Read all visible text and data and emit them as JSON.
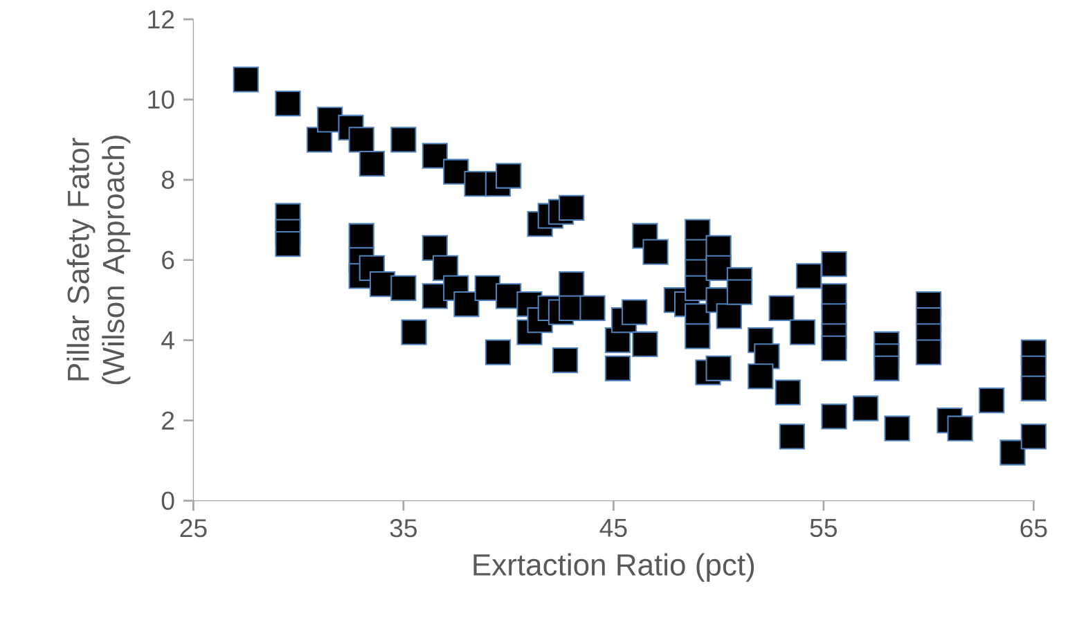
{
  "chart_data": {
    "type": "scatter",
    "xlabel": "Exrtaction Ratio (pct)",
    "ylabel": "Pillar Safety Fator (Wilson Approach)",
    "xlim": [
      25,
      65
    ],
    "xticks": [
      25,
      35,
      45,
      55,
      65
    ],
    "ylim": [
      0,
      12
    ],
    "yticks": [
      0,
      2,
      4,
      6,
      8,
      10,
      12
    ],
    "grid": false,
    "marker": "square",
    "series": [
      {
        "color": "#000000",
        "x": [
          27.5,
          29.5,
          31,
          31.5,
          32.5,
          33,
          33.5,
          35,
          36.5,
          37.5,
          38.5,
          39.5,
          40,
          41.5,
          42,
          42.5,
          43,
          29.5,
          29.5,
          29.5,
          33,
          33,
          33,
          33.5,
          34,
          35,
          35.5,
          36.5,
          36.5,
          37,
          37.5,
          38,
          39,
          40,
          39.5,
          41,
          41,
          41.5,
          42,
          42.5,
          43,
          42.7,
          43,
          44,
          45.2,
          45.2,
          45.5,
          46,
          46.5,
          46.5,
          47,
          48,
          48.5,
          49,
          49,
          49,
          49,
          49,
          49,
          49.5,
          50,
          50,
          50,
          50,
          50.5,
          51,
          51,
          52,
          52.3,
          52,
          53,
          53.3,
          53.5,
          54.3,
          54,
          55.5,
          55.5,
          55.5,
          55.5,
          55.5,
          55.5,
          57,
          58,
          58,
          58,
          58.5,
          60,
          60,
          60,
          60,
          61,
          61.5,
          63,
          64,
          65,
          65,
          65,
          65
        ],
        "values": [
          10.5,
          9.9,
          9.0,
          9.5,
          9.3,
          9.0,
          8.4,
          9.0,
          8.6,
          8.2,
          7.9,
          7.9,
          8.1,
          6.9,
          7.1,
          7.2,
          7.3,
          7.1,
          6.7,
          6.4,
          6.6,
          6.0,
          5.6,
          5.8,
          5.4,
          5.3,
          4.2,
          6.3,
          5.1,
          5.8,
          5.3,
          4.9,
          5.3,
          5.1,
          3.7,
          4.2,
          4.9,
          4.5,
          4.8,
          4.7,
          5.4,
          3.5,
          4.8,
          4.8,
          3.3,
          4.0,
          4.5,
          4.7,
          3.9,
          6.6,
          6.2,
          5.0,
          4.9,
          6.7,
          6.2,
          5.7,
          5.3,
          4.6,
          4.1,
          3.2,
          3.3,
          6.3,
          5.8,
          5.0,
          4.6,
          5.5,
          5.2,
          4.0,
          3.6,
          3.1,
          4.8,
          2.7,
          1.6,
          5.6,
          4.2,
          5.9,
          5.1,
          4.6,
          4.1,
          3.8,
          2.1,
          2.3,
          3.9,
          3.6,
          3.3,
          1.8,
          4.9,
          4.5,
          4.1,
          3.7,
          2.0,
          1.8,
          2.5,
          1.2,
          3.7,
          3.3,
          2.8,
          1.6
        ]
      }
    ]
  }
}
